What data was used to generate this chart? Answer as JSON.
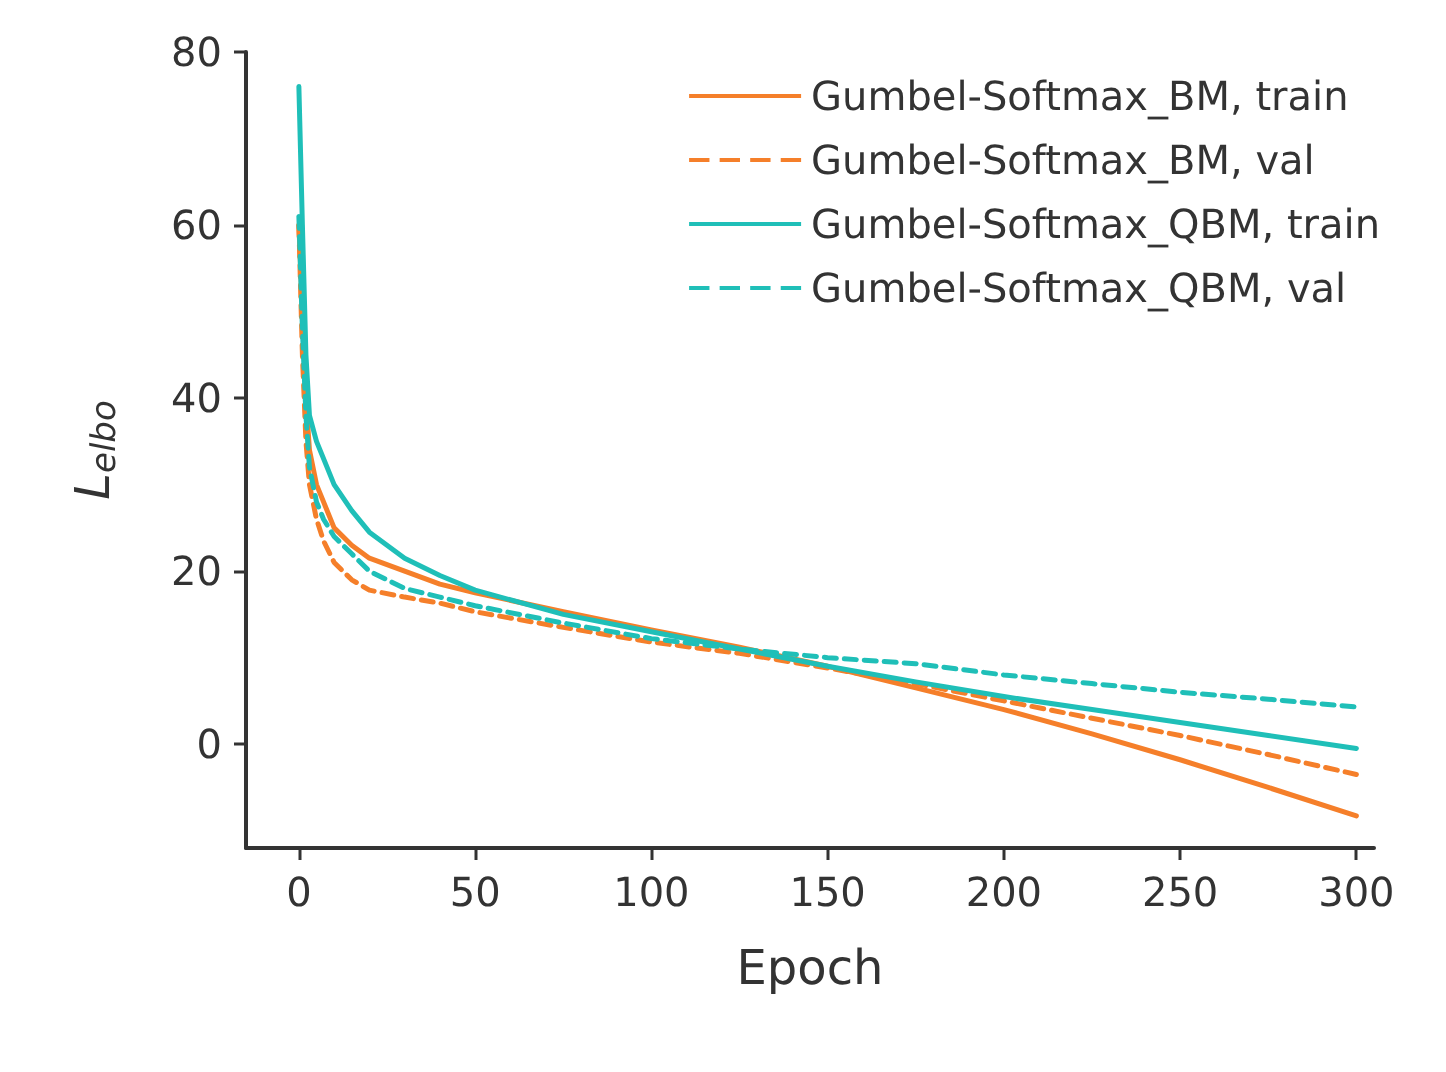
{
  "chart_data": {
    "type": "line",
    "xlabel": "Epoch",
    "ylabel": "L$_{elbo}$",
    "x": [
      0,
      1,
      2,
      3,
      5,
      7,
      10,
      15,
      20,
      30,
      40,
      50,
      75,
      100,
      125,
      150,
      175,
      200,
      225,
      250,
      275,
      300
    ],
    "xlim": [
      -15,
      305
    ],
    "ylim": [
      -12,
      80
    ],
    "xticks": [
      0,
      50,
      100,
      150,
      200,
      250,
      300
    ],
    "yticks": [
      0,
      20,
      40,
      60,
      80
    ],
    "grid": false,
    "legend": "top right",
    "marker": "none",
    "series": [
      {
        "name": "Gumbel-Softmax_BM, train",
        "color": "#f57f2a",
        "line_style": "solid",
        "values": [
          60,
          50,
          40,
          34,
          30,
          28,
          25,
          23,
          21.5,
          20,
          18.5,
          17.5,
          15.3,
          13.2,
          11.2,
          9,
          6.5,
          4,
          1.2,
          -1.8,
          -5,
          -8.3
        ]
      },
      {
        "name": "Gumbel-Softmax_BM, val",
        "color": "#f57f2a",
        "line_style": "dashed",
        "values": [
          60,
          45,
          35,
          30,
          26,
          23.5,
          21,
          19,
          17.8,
          17,
          16.3,
          15.3,
          13.5,
          11.8,
          10.5,
          8.8,
          7,
          5,
          3,
          1,
          -1.2,
          -3.5
        ]
      },
      {
        "name": "Gumbel-Softmax_QBM, train",
        "color": "#1fbfb8",
        "line_style": "solid",
        "values": [
          76,
          60,
          45,
          38,
          35,
          33,
          30,
          27,
          24.5,
          21.5,
          19.5,
          17.8,
          15,
          13,
          11,
          9,
          7.2,
          5.5,
          4,
          2.5,
          1,
          -0.5
        ]
      },
      {
        "name": "Gumbel-Softmax_QBM, val",
        "color": "#1fbfb8",
        "line_style": "dashed",
        "values": [
          61,
          48,
          38,
          32,
          28,
          26,
          24,
          22,
          20,
          18,
          17,
          16,
          14,
          12.2,
          11,
          10,
          9.3,
          8,
          7,
          6,
          5.2,
          4.3
        ]
      }
    ]
  }
}
